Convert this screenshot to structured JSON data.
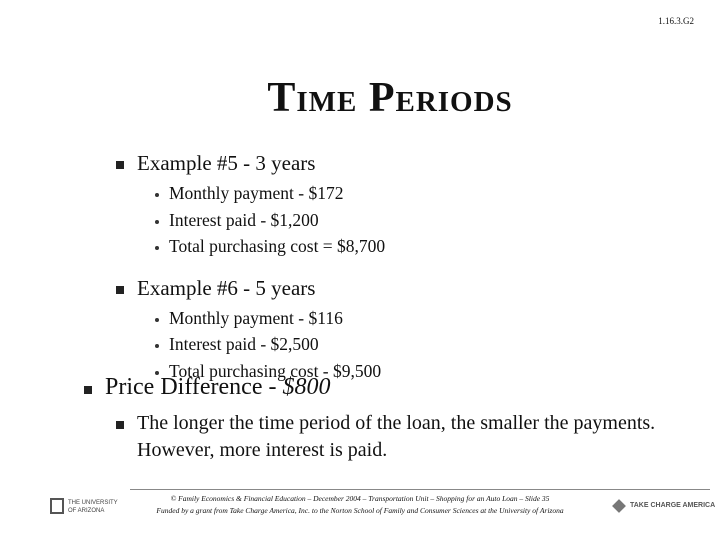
{
  "slide_code": "1.16.3.G2",
  "title": "Time Periods",
  "items": [
    {
      "text": "Example #5 - 3 years",
      "subitems": [
        "Monthly payment - $172",
        "Interest paid - $1,200",
        "Total purchasing cost = $8,700"
      ]
    },
    {
      "text": "Example #6 - 5 years",
      "subitems": [
        "Monthly payment - $116",
        "Interest paid - $2,500",
        "Total purchasing cost - $9,500"
      ]
    }
  ],
  "summary": {
    "text": "Price Difference -",
    "emphasis": "$800",
    "note": "The longer the time period of the loan, the smaller the payments. However, more interest is paid."
  },
  "footer": {
    "line1": "© Family Economics & Financial Education – December 2004 – Transportation Unit – Shopping for an Auto Loan – Slide 35",
    "line2": "Funded by a grant from Take Charge America, Inc. to the Norton School of Family and Consumer Sciences at the University of Arizona"
  },
  "logos": {
    "left": [
      "THE UNIVERSITY",
      "OF ARIZONA"
    ],
    "right": "TAKE CHARGE AMERICA"
  }
}
